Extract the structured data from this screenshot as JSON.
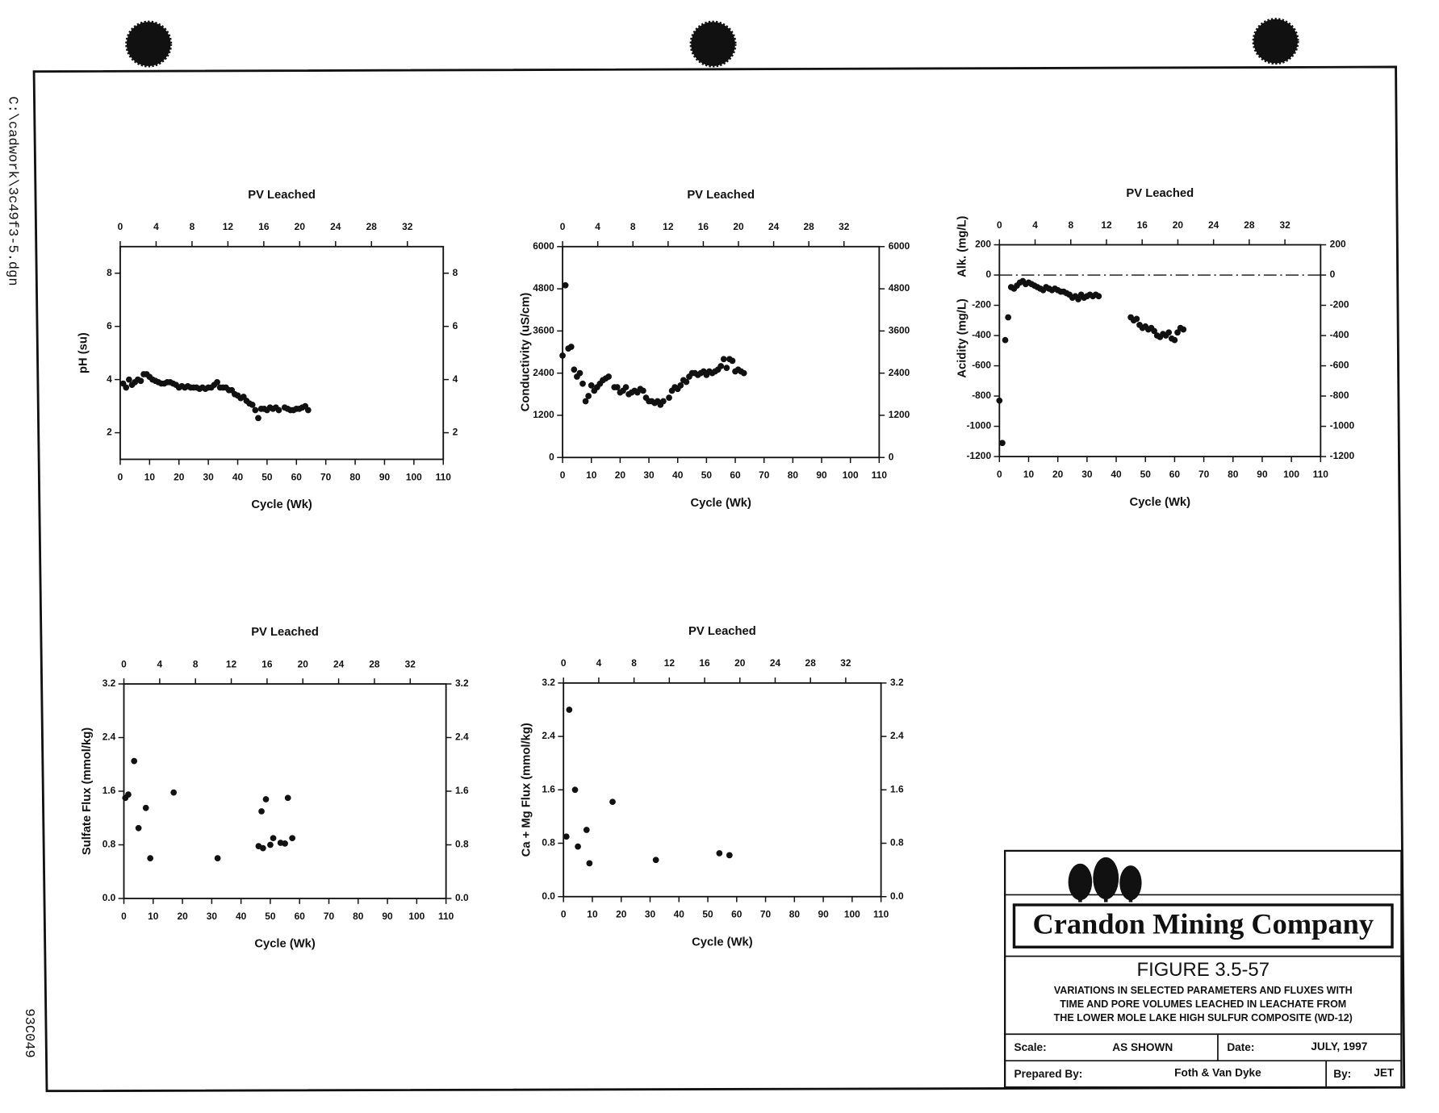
{
  "file_path": "C:\\cadwork\\3c49f3-5.dgn",
  "drawing_number": "93C049",
  "chart_data": [
    {
      "type": "scatter",
      "x2label": "PV Leached",
      "xlabel": "Cycle (Wk)",
      "ylabel": "pH (su)",
      "color": "#111",
      "xlim": [
        0,
        110
      ],
      "xticks": [
        0,
        10,
        20,
        30,
        40,
        50,
        60,
        70,
        80,
        90,
        100,
        110
      ],
      "x2lim": [
        0,
        36
      ],
      "x2ticks": [
        0,
        4,
        8,
        12,
        16,
        20,
        24,
        28,
        32
      ],
      "ylim": [
        1,
        9
      ],
      "yticks": [
        2,
        4,
        6,
        8
      ],
      "x": [
        1,
        2,
        3,
        4,
        5,
        6,
        7,
        8,
        9,
        10,
        11,
        12,
        13,
        14,
        15,
        16,
        17,
        18,
        19,
        20,
        21,
        22,
        23,
        24,
        25,
        26,
        27,
        28,
        29,
        30,
        31,
        32,
        33,
        34,
        35,
        36,
        37,
        38,
        39,
        40,
        41,
        42,
        43,
        44,
        45,
        46,
        47,
        48,
        49,
        50,
        51,
        52,
        53,
        54,
        56,
        57,
        58,
        59,
        60,
        61,
        62,
        63,
        64
      ],
      "values": [
        3.85,
        3.7,
        4.0,
        3.8,
        3.9,
        4.0,
        3.95,
        4.2,
        4.2,
        4.1,
        4.0,
        3.95,
        3.9,
        3.85,
        3.85,
        3.9,
        3.9,
        3.85,
        3.8,
        3.7,
        3.75,
        3.7,
        3.75,
        3.7,
        3.7,
        3.7,
        3.65,
        3.7,
        3.65,
        3.7,
        3.7,
        3.8,
        3.9,
        3.7,
        3.7,
        3.7,
        3.6,
        3.6,
        3.45,
        3.4,
        3.3,
        3.35,
        3.2,
        3.1,
        3.05,
        2.85,
        2.55,
        2.9,
        2.9,
        2.85,
        2.95,
        2.9,
        2.95,
        2.85,
        2.95,
        2.9,
        2.85,
        2.85,
        2.9,
        2.9,
        2.95,
        3.0,
        2.85
      ]
    },
    {
      "type": "scatter",
      "x2label": "PV Leached",
      "xlabel": "Cycle (Wk)",
      "ylabel": "Conductivity (uS/cm)",
      "color": "#111",
      "xlim": [
        0,
        110
      ],
      "xticks": [
        0,
        10,
        20,
        30,
        40,
        50,
        60,
        70,
        80,
        90,
        100,
        110
      ],
      "x2lim": [
        0,
        36
      ],
      "x2ticks": [
        0,
        4,
        8,
        12,
        16,
        20,
        24,
        28,
        32
      ],
      "ylim": [
        0,
        6000
      ],
      "yticks": [
        0,
        1200,
        2400,
        3600,
        4800,
        6000
      ],
      "x": [
        0,
        1,
        2,
        3,
        4,
        5,
        6,
        7,
        8,
        9,
        10,
        11,
        12,
        13,
        14,
        15,
        16,
        18,
        19,
        20,
        21,
        22,
        23,
        24,
        25,
        26,
        27,
        28,
        29,
        30,
        31,
        32,
        33,
        34,
        35,
        37,
        38,
        39,
        40,
        41,
        42,
        43,
        44,
        45,
        46,
        47,
        48,
        49,
        50,
        51,
        52,
        53,
        54,
        55,
        56,
        57,
        58,
        59,
        60,
        61,
        62,
        63
      ],
      "values": [
        2900,
        4900,
        3100,
        3150,
        2500,
        2300,
        2400,
        2100,
        1600,
        1750,
        2050,
        1900,
        2000,
        2100,
        2200,
        2250,
        2300,
        2000,
        2000,
        1850,
        1900,
        2000,
        1800,
        1850,
        1900,
        1850,
        1950,
        1900,
        1700,
        1600,
        1600,
        1550,
        1600,
        1500,
        1600,
        1700,
        1900,
        2000,
        1950,
        2050,
        2200,
        2150,
        2300,
        2400,
        2400,
        2350,
        2400,
        2450,
        2350,
        2450,
        2400,
        2450,
        2500,
        2600,
        2800,
        2550,
        2800,
        2750,
        2450,
        2500,
        2450,
        2400
      ]
    },
    {
      "type": "scatter",
      "x2label": "PV Leached",
      "xlabel": "Cycle (Wk)",
      "ylabel": "Acidity (mg/L)",
      "ylabel2": "Alk. (mg/L)",
      "color": "#111",
      "reference_line": 0,
      "xlim": [
        0,
        110
      ],
      "xticks": [
        0,
        10,
        20,
        30,
        40,
        50,
        60,
        70,
        80,
        90,
        100,
        110
      ],
      "x2lim": [
        0,
        36
      ],
      "x2ticks": [
        0,
        4,
        8,
        12,
        16,
        20,
        24,
        28,
        32
      ],
      "ylim": [
        -1200,
        200
      ],
      "yticks": [
        -1200,
        -1000,
        -800,
        -600,
        -400,
        -200,
        0,
        200
      ],
      "x": [
        0,
        1,
        2,
        3,
        4,
        5,
        6,
        7,
        8,
        9,
        10,
        11,
        12,
        13,
        14,
        15,
        16,
        17,
        18,
        19,
        20,
        21,
        22,
        23,
        24,
        25,
        26,
        27,
        28,
        29,
        30,
        31,
        32,
        33,
        34,
        45,
        46,
        47,
        48,
        49,
        50,
        51,
        52,
        53,
        54,
        55,
        56,
        57,
        58,
        59,
        60,
        61,
        62,
        63
      ],
      "values": [
        -830,
        -1110,
        -430,
        -280,
        -80,
        -90,
        -70,
        -50,
        -40,
        -60,
        -50,
        -60,
        -70,
        -80,
        -90,
        -100,
        -80,
        -90,
        -100,
        -90,
        -100,
        -110,
        -110,
        -120,
        -130,
        -150,
        -140,
        -160,
        -130,
        -150,
        -140,
        -130,
        -140,
        -130,
        -140,
        -280,
        -300,
        -290,
        -330,
        -350,
        -340,
        -360,
        -350,
        -370,
        -400,
        -410,
        -390,
        -400,
        -380,
        -420,
        -430,
        -380,
        -350,
        -360
      ]
    },
    {
      "type": "scatter",
      "x2label": "PV Leached",
      "xlabel": "Cycle (Wk)",
      "ylabel": "Sulfate Flux (mmol/kg)",
      "color": "#111",
      "xlim": [
        0,
        110
      ],
      "xticks": [
        0,
        10,
        20,
        30,
        40,
        50,
        60,
        70,
        80,
        90,
        100,
        110
      ],
      "x2lim": [
        0,
        36
      ],
      "x2ticks": [
        0,
        4,
        8,
        12,
        16,
        20,
        24,
        28,
        32
      ],
      "ylim": [
        0,
        3.2
      ],
      "yticks": [
        {
          "value": 0,
          "label": "0.0"
        },
        0.8,
        1.6,
        2.4,
        3.2
      ],
      "x": [
        0.5,
        1.5,
        3.5,
        5,
        7.5,
        9,
        17,
        32,
        46,
        47.5,
        47,
        48.5,
        50,
        51,
        53.5,
        55,
        56,
        57.5
      ],
      "values": [
        1.5,
        1.55,
        2.05,
        1.05,
        1.35,
        0.6,
        1.58,
        0.6,
        0.78,
        0.75,
        1.3,
        1.48,
        0.8,
        0.9,
        0.83,
        0.82,
        1.5,
        0.9
      ]
    },
    {
      "type": "scatter",
      "x2label": "PV Leached",
      "xlabel": "Cycle (Wk)",
      "ylabel": "Ca + Mg Flux (mmol/kg)",
      "color": "#111",
      "xlim": [
        0,
        110
      ],
      "xticks": [
        0,
        10,
        20,
        30,
        40,
        50,
        60,
        70,
        80,
        90,
        100,
        110
      ],
      "x2lim": [
        0,
        36
      ],
      "x2ticks": [
        0,
        4,
        8,
        12,
        16,
        20,
        24,
        28,
        32
      ],
      "ylim": [
        0,
        3.2
      ],
      "yticks": [
        {
          "value": 0,
          "label": "0.0"
        },
        0.8,
        1.6,
        2.4,
        3.2
      ],
      "x": [
        1,
        2,
        4,
        5,
        8,
        9,
        17,
        32,
        54,
        57.5
      ],
      "values": [
        0.9,
        2.8,
        1.6,
        0.75,
        1.0,
        0.5,
        1.42,
        0.55,
        0.65,
        0.62
      ]
    }
  ],
  "title_block": {
    "company": "Crandon Mining Company",
    "figure": "FIGURE 3.5-57",
    "description": [
      "VARIATIONS IN SELECTED PARAMETERS AND FLUXES WITH",
      "TIME AND PORE VOLUMES LEACHED IN LEACHATE FROM",
      "THE LOWER MOLE LAKE HIGH SULFUR COMPOSITE (WD-12)"
    ],
    "scale_label": "Scale:",
    "scale": "AS SHOWN",
    "date_label": "Date:",
    "date": "JULY, 1997",
    "prepared_label": "Prepared By:",
    "prepared_by": "Foth & Van Dyke",
    "by_label": "By:",
    "by": "JET"
  }
}
